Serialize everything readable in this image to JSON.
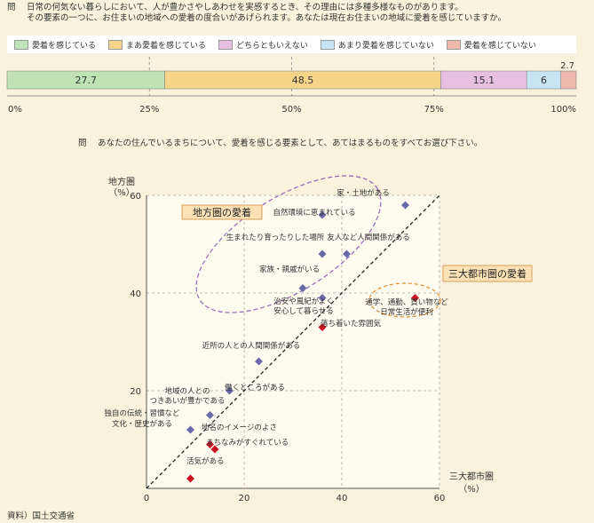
{
  "questions": {
    "q1_label": "問",
    "q1_line1": "日常の何気ない暮らしにおいて、人が豊かさやしあわせを実感するとき、その理由には多種多様なものがあります。",
    "q1_line2": "その要素の一つに、お住まいの地域への愛着の度合いがあげられます。あなたは現在お住まいの地域に愛着を感じていますか。",
    "q2_label": "問",
    "q2_text": "あなたの住んでいるまちについて、愛着を感じる要素として、あてはまるものをすべてお選び下さい。"
  },
  "source": "資料）国土交通省",
  "chart_data": [
    {
      "type": "bar",
      "orientation": "horizontal-stacked",
      "series": [
        {
          "name": "愛着を感じている",
          "value": 27.7,
          "color": "#bfe3b4"
        },
        {
          "name": "まあ愛着を感じている",
          "value": 48.5,
          "color": "#f6d58a"
        },
        {
          "name": "どちらともいえない",
          "value": 15.1,
          "color": "#e6bfe1"
        },
        {
          "name": "あまり愛着を感じていない",
          "value": 6.0,
          "color": "#c7e4f2"
        },
        {
          "name": "愛着を感じていない",
          "value": 2.7,
          "color": "#eeb9ad"
        }
      ],
      "xlim": [
        0,
        100
      ],
      "xticks": [
        "0%",
        "25%",
        "50%",
        "75%",
        "100%"
      ],
      "grid": true,
      "legend": "top"
    },
    {
      "type": "scatter",
      "xlabel_line1": "三大都市圏",
      "xlabel_line2": "（%）",
      "ylabel_line1": "地方圏",
      "ylabel_line2": "（%）",
      "xlim": [
        0,
        60
      ],
      "ylim": [
        0,
        60
      ],
      "xticks": [
        0,
        20,
        40,
        60
      ],
      "yticks": [
        20,
        40,
        60
      ],
      "grid": true,
      "diagonal": true,
      "colors": {
        "rural": "#6a6aaa",
        "urban": "#cc1122"
      },
      "points": [
        {
          "label": "家・土地がある",
          "x": 53,
          "y": 58,
          "group": "rural"
        },
        {
          "label": "自然環境に恵まれている",
          "x": 36,
          "y": 56,
          "group": "rural"
        },
        {
          "label": "生まれたり育ったりした場所",
          "x": 36,
          "y": 48,
          "group": "rural"
        },
        {
          "label": "友人など人間関係がある",
          "x": 41,
          "y": 48,
          "group": "rural"
        },
        {
          "label": "家族・親戚がいる",
          "x": 32,
          "y": 41,
          "group": "rural"
        },
        {
          "label": "治安や風紀がよく安心して暮らせる",
          "x": 36,
          "y": 39,
          "group": "rural"
        },
        {
          "label": "落ち着いた雰囲気",
          "x": 36,
          "y": 33,
          "group": "urban"
        },
        {
          "label": "通学、通勤、買い物など日常生活が便利",
          "x": 55,
          "y": 39,
          "group": "urban"
        },
        {
          "label": "近所の人との人間関係がある",
          "x": 23,
          "y": 26,
          "group": "rural"
        },
        {
          "label": "働くところがある",
          "x": 17,
          "y": 20,
          "group": "rural"
        },
        {
          "label": "地域の人とのつきあいが豊かである",
          "x": 13,
          "y": 15,
          "group": "rural"
        },
        {
          "label": "独自の伝統・習慣など文化・歴史がある",
          "x": 9,
          "y": 12,
          "group": "rural"
        },
        {
          "label": "地名のイメージのよさ",
          "x": 13,
          "y": 9,
          "group": "urban"
        },
        {
          "label": "まちなみがすぐれている",
          "x": 14,
          "y": 8,
          "group": "urban"
        },
        {
          "label": "活気がある",
          "x": 9,
          "y": 2,
          "group": "urban"
        }
      ],
      "annotations": {
        "rural_label": "地方圏の愛着",
        "urban_label": "三大都市圏の愛着"
      }
    }
  ]
}
